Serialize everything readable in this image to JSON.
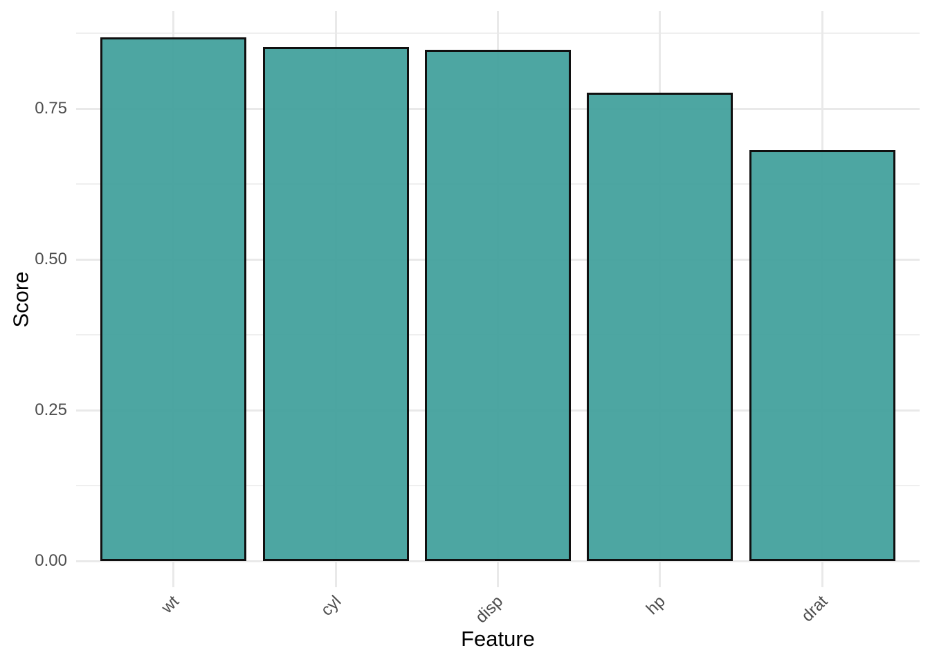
{
  "chart_data": {
    "type": "bar",
    "title": "",
    "xlabel": "Feature",
    "ylabel": "Score",
    "categories": [
      "wt",
      "cyl",
      "disp",
      "hp",
      "drat"
    ],
    "values": [
      0.868,
      0.852,
      0.848,
      0.776,
      0.681
    ],
    "y_ticks": {
      "labels": [
        "0.00",
        "0.25",
        "0.50",
        "0.75"
      ],
      "values": [
        0,
        0.25,
        0.5,
        0.75
      ]
    },
    "y_minor_ticks": [
      0.125,
      0.375,
      0.625,
      0.875
    ],
    "ylim": [
      -0.0434,
      0.9114
    ],
    "grid": "on",
    "legend": "none",
    "colors": {
      "bar_fill": "#3f9f9b",
      "bar_fill_alpha": 0.93,
      "bar_stroke": "#101010",
      "gridline_major": "#e9e9e9",
      "gridline_minor": "#efefef",
      "tick_label": "#4d4d4d",
      "axis_title": "#000000",
      "background": "#ffffff"
    }
  }
}
